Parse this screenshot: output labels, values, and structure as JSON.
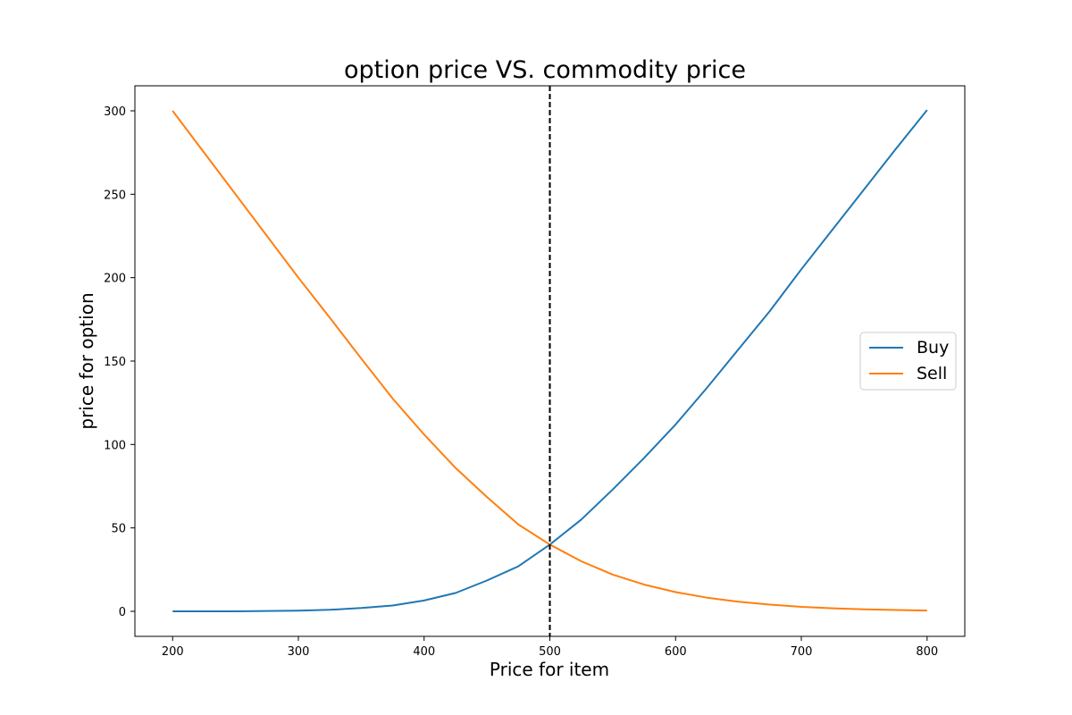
{
  "chart_data": {
    "type": "line",
    "title": "option price VS. commodity price",
    "xlabel": "Price for item",
    "ylabel": "price for option",
    "xlim": [
      170,
      830
    ],
    "ylim": [
      -15,
      315
    ],
    "xticks": [
      200,
      300,
      400,
      500,
      600,
      700,
      800
    ],
    "yticks": [
      0,
      50,
      100,
      150,
      200,
      250,
      300
    ],
    "grid": false,
    "legend_position": "center-right",
    "vline": {
      "x": 500,
      "style": "dashed",
      "color": "#000000"
    },
    "x": [
      200,
      250,
      300,
      325,
      350,
      375,
      400,
      425,
      450,
      475,
      500,
      525,
      550,
      575,
      600,
      625,
      650,
      675,
      700,
      725,
      750,
      775,
      800
    ],
    "series": [
      {
        "name": "Buy",
        "color": "#1f77b4",
        "values": [
          0.0,
          0.0,
          0.4,
          0.9,
          2.0,
          3.5,
          6.5,
          11.0,
          18.5,
          27.0,
          40.0,
          55.0,
          73.0,
          92.0,
          112.0,
          134.0,
          157.0,
          180.0,
          205.0,
          229.0,
          253.0,
          277.0,
          300.5
        ]
      },
      {
        "name": "Sell",
        "color": "#ff7f0e",
        "values": [
          300.0,
          250.0,
          200.0,
          176.0,
          151.5,
          127.5,
          106.0,
          86.0,
          68.5,
          52.0,
          40.0,
          30.0,
          22.0,
          16.0,
          11.5,
          8.2,
          5.8,
          4.0,
          2.7,
          1.8,
          1.2,
          0.8,
          0.5
        ]
      }
    ]
  }
}
